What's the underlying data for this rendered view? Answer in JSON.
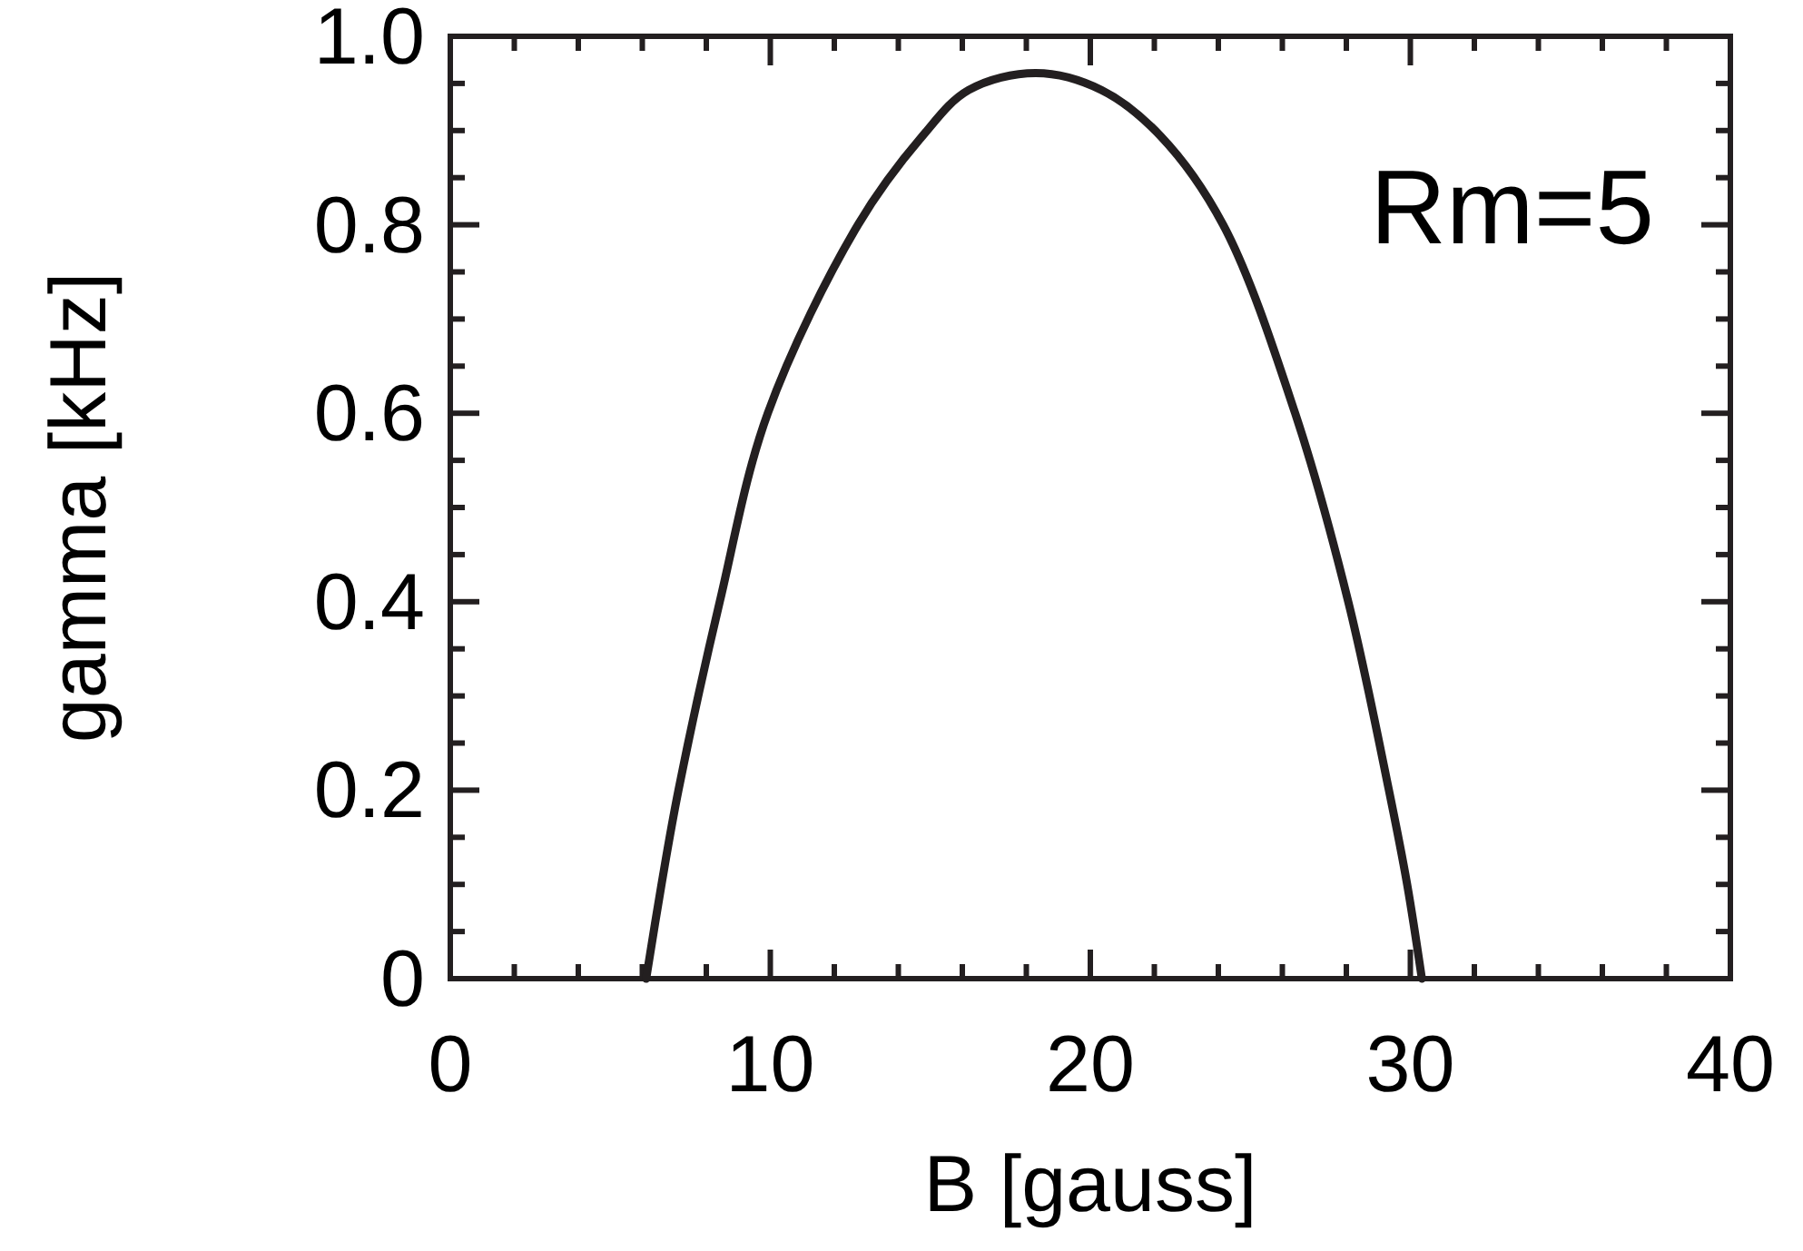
{
  "chart_data": {
    "type": "line",
    "xlabel": "B [gauss]",
    "ylabel": "gamma [kHz]",
    "annotations": [
      "Rm=5"
    ],
    "xlim": [
      0,
      40
    ],
    "ylim": [
      0,
      1
    ],
    "xticks": [
      0,
      10,
      20,
      30,
      40
    ],
    "yticks": [
      {
        "value": 0,
        "label": "0"
      },
      {
        "value": 0.2,
        "label": "0.2"
      },
      {
        "value": 0.4,
        "label": "0.4"
      },
      {
        "value": 0.6,
        "label": "0.6"
      },
      {
        "value": 0.8,
        "label": "0.8"
      },
      {
        "value": 1,
        "label": "1.0"
      }
    ],
    "grid": false,
    "marker": "none",
    "line_style": "solid",
    "series": [
      {
        "color": "#231f20",
        "x": [
          6.12,
          6.6,
          7.13,
          8.42,
          9.92,
          12.74,
          14.75,
          16.2,
          18.3,
          20.35,
          22.2,
          24.15,
          26.4,
          28.06,
          29.33,
          29.9,
          30.36
        ],
        "values": [
          0,
          0.1,
          0.2,
          0.4,
          0.6,
          0.8,
          0.894,
          0.943,
          0.961,
          0.943,
          0.894,
          0.8,
          0.6,
          0.4,
          0.2,
          0.1,
          0
        ]
      }
    ]
  }
}
